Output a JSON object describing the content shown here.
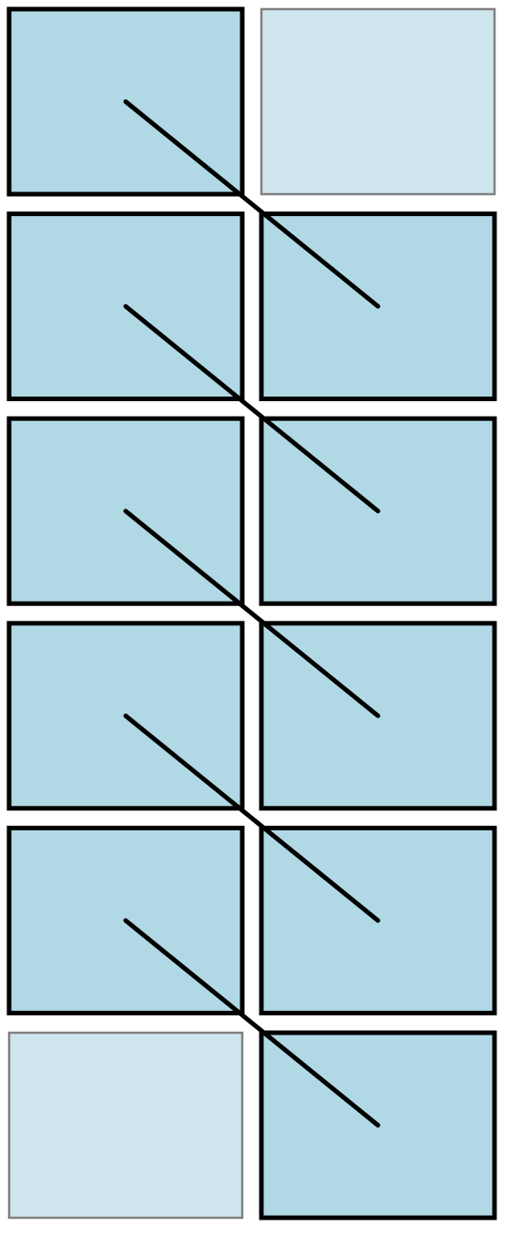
{
  "diagram": {
    "title": "",
    "colors": {
      "active_fill": "#b0d9e5",
      "active_stroke": "#000000",
      "inactive_fill": "#d0e6ef",
      "inactive_stroke": "#808080",
      "connector": "#000000"
    },
    "grid": {
      "rows": 6,
      "columns": 2
    },
    "cells": [
      {
        "row": 1,
        "column": 1,
        "state": "active"
      },
      {
        "row": 1,
        "column": 2,
        "state": "inactive"
      },
      {
        "row": 2,
        "column": 1,
        "state": "active"
      },
      {
        "row": 2,
        "column": 2,
        "state": "active"
      },
      {
        "row": 3,
        "column": 1,
        "state": "active"
      },
      {
        "row": 3,
        "column": 2,
        "state": "active"
      },
      {
        "row": 4,
        "column": 1,
        "state": "active"
      },
      {
        "row": 4,
        "column": 2,
        "state": "active"
      },
      {
        "row": 5,
        "column": 1,
        "state": "active"
      },
      {
        "row": 5,
        "column": 2,
        "state": "active"
      },
      {
        "row": 6,
        "column": 1,
        "state": "inactive"
      },
      {
        "row": 6,
        "column": 2,
        "state": "active"
      }
    ],
    "connectors": [
      {
        "from": {
          "row": 1,
          "column": 1
        },
        "to": {
          "row": 2,
          "column": 2
        }
      },
      {
        "from": {
          "row": 2,
          "column": 1
        },
        "to": {
          "row": 3,
          "column": 2
        }
      },
      {
        "from": {
          "row": 3,
          "column": 1
        },
        "to": {
          "row": 4,
          "column": 2
        }
      },
      {
        "from": {
          "row": 4,
          "column": 1
        },
        "to": {
          "row": 5,
          "column": 2
        }
      },
      {
        "from": {
          "row": 5,
          "column": 1
        },
        "to": {
          "row": 6,
          "column": 2
        }
      }
    ]
  }
}
